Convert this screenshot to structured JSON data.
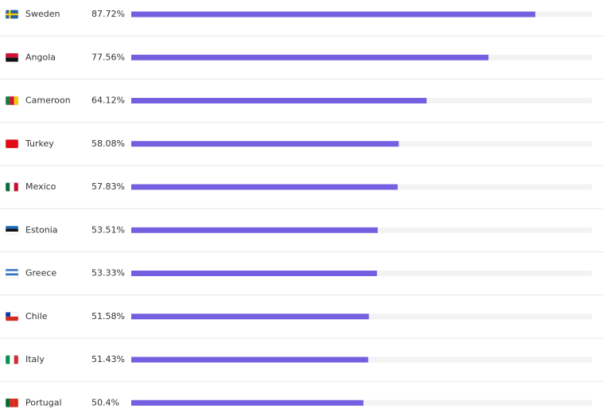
{
  "chart_data": {
    "type": "hbar",
    "categories": [
      "Sweden",
      "Angola",
      "Cameroon",
      "Turkey",
      "Mexico",
      "Estonia",
      "Greece",
      "Chile",
      "Italy",
      "Portugal"
    ],
    "values": [
      87.72,
      77.56,
      64.12,
      58.08,
      57.83,
      53.51,
      53.33,
      51.58,
      51.43,
      50.4
    ],
    "value_labels": [
      "87.72%",
      "77.56%",
      "64.12%",
      "58.08%",
      "57.83%",
      "53.51%",
      "53.33%",
      "51.58%",
      "51.43%",
      "50.4%"
    ],
    "xlim": [
      0,
      100
    ],
    "color": "#735fe0"
  }
}
